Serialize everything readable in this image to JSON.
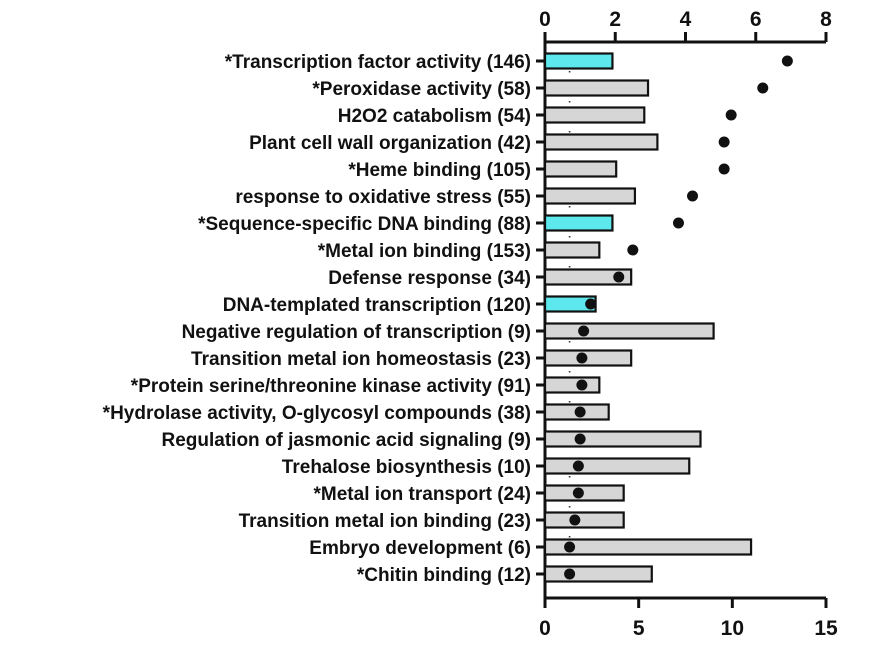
{
  "chart_data": {
    "type": "bar",
    "orientation": "horizontal",
    "categories": [
      "*Transcription factor activity (146)",
      "*Peroxidase activity (58)",
      "H2O2 catabolism (54)",
      "Plant cell wall organization (42)",
      "*Heme binding (105)",
      "response to oxidative stress (55)",
      "*Sequence-specific DNA binding (88)",
      "*Metal ion binding (153)",
      "Defense response (34)",
      "DNA-templated transcription (120)",
      "Negative regulation of transcription (9)",
      "Transition metal ion homeostasis (23)",
      "*Protein serine/threonine kinase activity (91)",
      "*Hydrolase activity, O-glycosyl compounds (38)",
      "Regulation of jasmonic acid signaling (9)",
      "Trehalose biosynthesis (10)",
      "*Metal ion transport (24)",
      "Transition metal ion binding (23)",
      "Embryo development (6)",
      "*Chitin binding (12)"
    ],
    "bar_axis": "bottom",
    "bar_values": [
      3.6,
      5.5,
      5.3,
      6.0,
      3.8,
      4.8,
      3.6,
      2.9,
      4.6,
      2.7,
      9.0,
      4.6,
      2.9,
      3.4,
      8.3,
      7.7,
      4.2,
      4.2,
      11.0,
      5.7
    ],
    "bar_colors": [
      "#5ce8ec",
      "#d6d6d6",
      "#d6d6d6",
      "#d6d6d6",
      "#d6d6d6",
      "#d6d6d6",
      "#5ce8ec",
      "#d6d6d6",
      "#d6d6d6",
      "#5ce8ec",
      "#d6d6d6",
      "#d6d6d6",
      "#d6d6d6",
      "#d6d6d6",
      "#d6d6d6",
      "#d6d6d6",
      "#d6d6d6",
      "#d6d6d6",
      "#d6d6d6",
      "#d6d6d6"
    ],
    "dot_axis": "top",
    "dot_values": [
      6.9,
      6.2,
      5.3,
      5.1,
      5.1,
      4.2,
      3.8,
      2.5,
      2.1,
      1.3,
      1.1,
      1.05,
      1.05,
      1.0,
      1.0,
      0.95,
      0.95,
      0.85,
      0.7,
      0.7
    ],
    "top_axis": {
      "ticks": [
        0,
        2,
        4,
        6,
        8
      ],
      "range": [
        0,
        8
      ]
    },
    "bottom_axis": {
      "ticks": [
        0,
        5,
        10,
        15
      ],
      "range": [
        0,
        15
      ]
    },
    "reference_line": {
      "axis": "top",
      "value": 0.7,
      "style": "dotted"
    },
    "title": "",
    "xlabel": "",
    "ylabel": "",
    "grid": false,
    "legend": "none"
  }
}
